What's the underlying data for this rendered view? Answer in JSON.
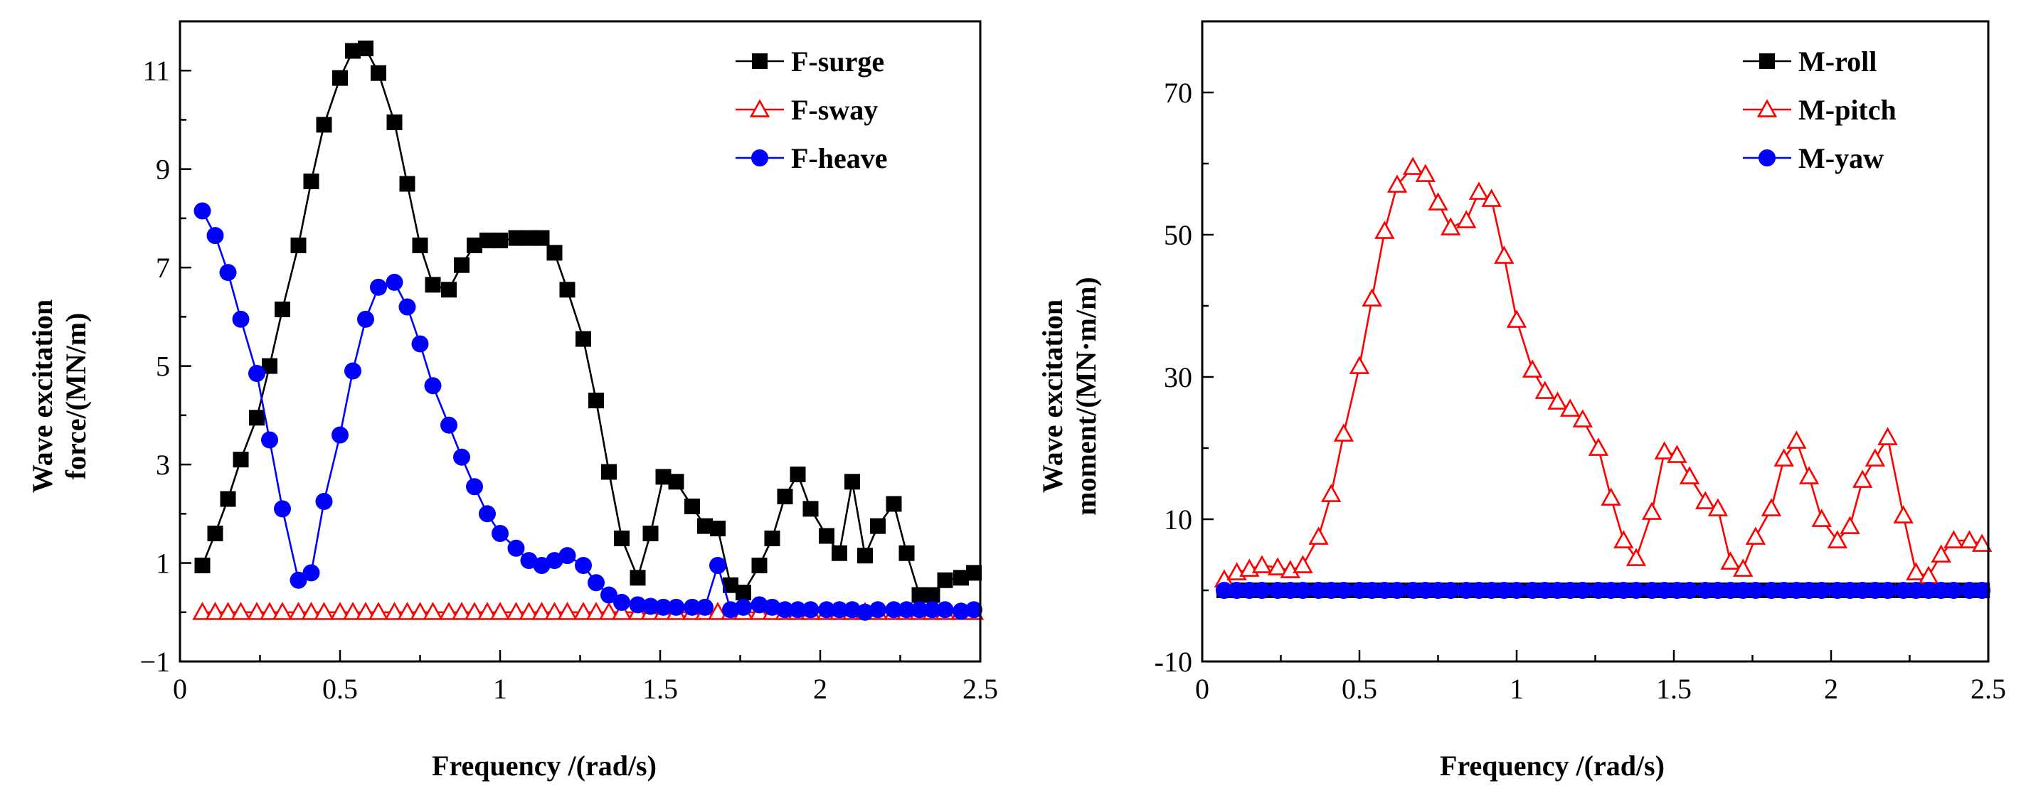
{
  "chart_data": [
    {
      "type": "line",
      "xlabel": "Frequency /(rad/s)",
      "ylabel_lines": [
        "Wave excitation",
        "force/(MN/m)"
      ],
      "xlim": [
        0,
        2.5
      ],
      "ylim": [
        -1,
        12
      ],
      "xticks": [
        0,
        0.5,
        1,
        1.5,
        2,
        2.5
      ],
      "xtick_labels": [
        "0",
        "0.5",
        "1",
        "1.5",
        "2",
        "2.5"
      ],
      "yticks": [
        -1,
        1,
        3,
        5,
        7,
        9,
        11
      ],
      "ytick_labels": [
        "−1",
        "1",
        "3",
        "5",
        "7",
        "9",
        "11"
      ],
      "legend_position": "top-right",
      "series": [
        {
          "name": "F-surge",
          "color": "#000000",
          "marker": "square",
          "x": [
            0.07,
            0.11,
            0.15,
            0.19,
            0.24,
            0.28,
            0.32,
            0.37,
            0.41,
            0.45,
            0.5,
            0.54,
            0.58,
            0.62,
            0.67,
            0.71,
            0.75,
            0.79,
            0.84,
            0.88,
            0.92,
            0.96,
            1.0,
            1.05,
            1.09,
            1.13,
            1.17,
            1.21,
            1.26,
            1.3,
            1.34,
            1.38,
            1.43,
            1.47,
            1.51,
            1.55,
            1.6,
            1.64,
            1.68,
            1.72,
            1.76,
            1.81,
            1.85,
            1.89,
            1.93,
            1.97,
            2.02,
            2.06,
            2.1,
            2.14,
            2.18,
            2.23,
            2.27,
            2.31,
            2.35,
            2.39,
            2.44,
            2.48
          ],
          "values": [
            0.95,
            1.6,
            2.3,
            3.1,
            3.95,
            5.0,
            6.15,
            7.45,
            8.75,
            9.9,
            10.85,
            11.4,
            11.45,
            10.95,
            9.95,
            8.7,
            7.45,
            6.65,
            6.55,
            7.05,
            7.45,
            7.55,
            7.55,
            7.6,
            7.6,
            7.6,
            7.3,
            6.55,
            5.55,
            4.3,
            2.85,
            1.5,
            0.7,
            1.6,
            2.75,
            2.65,
            2.15,
            1.75,
            1.7,
            0.55,
            0.4,
            0.95,
            1.5,
            2.35,
            2.8,
            2.1,
            1.55,
            1.2,
            2.65,
            1.15,
            1.75,
            2.2,
            1.2,
            0.35,
            0.35,
            0.65,
            0.7,
            0.8
          ]
        },
        {
          "name": "F-sway",
          "color": "#ff0000",
          "marker": "triangle",
          "x": [
            0.07,
            0.11,
            0.15,
            0.19,
            0.24,
            0.28,
            0.32,
            0.37,
            0.41,
            0.45,
            0.5,
            0.54,
            0.58,
            0.62,
            0.67,
            0.71,
            0.75,
            0.79,
            0.84,
            0.88,
            0.92,
            0.96,
            1.0,
            1.05,
            1.09,
            1.13,
            1.17,
            1.21,
            1.26,
            1.3,
            1.34,
            1.38,
            1.43,
            1.47,
            1.51,
            1.55,
            1.6,
            1.64,
            1.68,
            1.72,
            1.76,
            1.81,
            1.85,
            1.89,
            1.93,
            1.97,
            2.02,
            2.06,
            2.1,
            2.14,
            2.18,
            2.23,
            2.27,
            2.31,
            2.35,
            2.39,
            2.44,
            2.48
          ],
          "values": [
            0,
            0,
            0,
            0,
            0,
            0,
            0,
            0,
            0,
            0,
            0,
            0,
            0,
            0,
            0,
            0,
            0,
            0,
            0,
            0,
            0,
            0,
            0,
            0,
            0,
            0,
            0,
            0,
            0,
            0,
            0,
            0,
            0,
            0,
            0,
            0,
            0,
            0,
            0,
            0,
            0,
            0,
            0,
            0,
            0,
            0,
            0,
            0,
            0,
            0,
            0,
            0,
            0,
            0,
            0,
            0,
            0,
            0
          ]
        },
        {
          "name": "F-heave",
          "color": "#0000ff",
          "marker": "circle",
          "x": [
            0.07,
            0.11,
            0.15,
            0.19,
            0.24,
            0.28,
            0.32,
            0.37,
            0.41,
            0.45,
            0.5,
            0.54,
            0.58,
            0.62,
            0.67,
            0.71,
            0.75,
            0.79,
            0.84,
            0.88,
            0.92,
            0.96,
            1.0,
            1.05,
            1.09,
            1.13,
            1.17,
            1.21,
            1.26,
            1.3,
            1.34,
            1.38,
            1.43,
            1.47,
            1.51,
            1.55,
            1.6,
            1.64,
            1.68,
            1.72,
            1.76,
            1.81,
            1.85,
            1.89,
            1.93,
            1.97,
            2.02,
            2.06,
            2.1,
            2.14,
            2.18,
            2.23,
            2.27,
            2.31,
            2.35,
            2.39,
            2.44,
            2.48
          ],
          "values": [
            8.15,
            7.65,
            6.9,
            5.95,
            4.85,
            3.5,
            2.1,
            0.65,
            0.8,
            2.25,
            3.6,
            4.9,
            5.95,
            6.6,
            6.7,
            6.2,
            5.45,
            4.6,
            3.8,
            3.15,
            2.55,
            2.0,
            1.6,
            1.3,
            1.05,
            0.95,
            1.05,
            1.15,
            0.95,
            0.6,
            0.35,
            0.2,
            0.15,
            0.12,
            0.1,
            0.1,
            0.1,
            0.1,
            0.95,
            0.05,
            0.1,
            0.15,
            0.1,
            0.05,
            0.05,
            0.05,
            0.05,
            0.05,
            0.05,
            0.0,
            0.05,
            0.05,
            0.05,
            0.05,
            0.05,
            0.05,
            0.02,
            0.05
          ]
        }
      ]
    },
    {
      "type": "line",
      "xlabel": "Frequency /(rad/s)",
      "ylabel_lines": [
        "Wave excitation",
        "moment/(MN·m/m)"
      ],
      "xlim": [
        0,
        2.5
      ],
      "ylim": [
        -10,
        80
      ],
      "xticks": [
        0,
        0.5,
        1,
        1.5,
        2,
        2.5
      ],
      "xtick_labels": [
        "0",
        "0.5",
        "1",
        "1.5",
        "2",
        "2.5"
      ],
      "yticks": [
        -10,
        10,
        30,
        50,
        70
      ],
      "ytick_labels": [
        "-10",
        "10",
        "30",
        "50",
        "70"
      ],
      "legend_position": "top-right",
      "series": [
        {
          "name": "M-roll",
          "color": "#000000",
          "marker": "square",
          "x": [
            0.07,
            0.11,
            0.15,
            0.19,
            0.24,
            0.28,
            0.32,
            0.37,
            0.41,
            0.45,
            0.5,
            0.54,
            0.58,
            0.62,
            0.67,
            0.71,
            0.75,
            0.79,
            0.84,
            0.88,
            0.92,
            0.96,
            1.0,
            1.05,
            1.09,
            1.13,
            1.17,
            1.21,
            1.26,
            1.3,
            1.34,
            1.38,
            1.43,
            1.47,
            1.51,
            1.55,
            1.6,
            1.64,
            1.68,
            1.72,
            1.76,
            1.81,
            1.85,
            1.89,
            1.93,
            1.97,
            2.02,
            2.06,
            2.1,
            2.14,
            2.18,
            2.23,
            2.27,
            2.31,
            2.35,
            2.39,
            2.44,
            2.48
          ],
          "values": [
            0,
            0,
            0,
            0,
            0,
            0,
            0,
            0,
            0,
            0,
            0,
            0,
            0,
            0,
            0,
            0,
            0,
            0,
            0,
            0,
            0,
            0,
            0,
            0,
            0,
            0,
            0,
            0,
            0,
            0,
            0,
            0,
            0,
            0,
            0,
            0,
            0,
            0,
            0,
            0,
            0,
            0,
            0,
            0,
            0,
            0,
            0,
            0,
            0,
            0,
            0,
            0,
            0,
            0,
            0,
            0,
            0,
            0
          ]
        },
        {
          "name": "M-pitch",
          "color": "#ff0000",
          "marker": "triangle",
          "x": [
            0.07,
            0.11,
            0.15,
            0.19,
            0.24,
            0.28,
            0.32,
            0.37,
            0.41,
            0.45,
            0.5,
            0.54,
            0.58,
            0.62,
            0.67,
            0.71,
            0.75,
            0.79,
            0.84,
            0.88,
            0.92,
            0.96,
            1.0,
            1.05,
            1.09,
            1.13,
            1.17,
            1.21,
            1.26,
            1.3,
            1.34,
            1.38,
            1.43,
            1.47,
            1.51,
            1.55,
            1.6,
            1.64,
            1.68,
            1.72,
            1.76,
            1.81,
            1.85,
            1.89,
            1.93,
            1.97,
            2.02,
            2.06,
            2.1,
            2.14,
            2.18,
            2.23,
            2.27,
            2.31,
            2.35,
            2.39,
            2.44,
            2.48
          ],
          "values": [
            1.5,
            2.5,
            3.0,
            3.5,
            3.2,
            2.8,
            3.5,
            7.5,
            13.5,
            22.0,
            31.5,
            41.0,
            50.5,
            57.0,
            59.5,
            58.5,
            54.5,
            51.0,
            52.0,
            56.0,
            55.0,
            47.0,
            38.0,
            31.0,
            28.0,
            26.5,
            25.5,
            24.0,
            20.0,
            13.0,
            7.0,
            4.5,
            11.0,
            19.5,
            19.0,
            16.0,
            12.5,
            11.5,
            4.0,
            3.0,
            7.5,
            11.5,
            18.5,
            21.0,
            16.0,
            10.0,
            7.0,
            9.0,
            15.5,
            18.5,
            21.5,
            10.5,
            2.5,
            2.0,
            5.0,
            7.0,
            7.0,
            6.5
          ]
        },
        {
          "name": "M-yaw",
          "color": "#0000ff",
          "marker": "circle",
          "x": [
            0.07,
            0.11,
            0.15,
            0.19,
            0.24,
            0.28,
            0.32,
            0.37,
            0.41,
            0.45,
            0.5,
            0.54,
            0.58,
            0.62,
            0.67,
            0.71,
            0.75,
            0.79,
            0.84,
            0.88,
            0.92,
            0.96,
            1.0,
            1.05,
            1.09,
            1.13,
            1.17,
            1.21,
            1.26,
            1.3,
            1.34,
            1.38,
            1.43,
            1.47,
            1.51,
            1.55,
            1.6,
            1.64,
            1.68,
            1.72,
            1.76,
            1.81,
            1.85,
            1.89,
            1.93,
            1.97,
            2.02,
            2.06,
            2.1,
            2.14,
            2.18,
            2.23,
            2.27,
            2.31,
            2.35,
            2.39,
            2.44,
            2.48
          ],
          "values": [
            0,
            0,
            0,
            0,
            0,
            0,
            0,
            0,
            0,
            0,
            0,
            0,
            0,
            0,
            0,
            0,
            0,
            0,
            0,
            0,
            0,
            0,
            0,
            0,
            0,
            0,
            0,
            0,
            0,
            0,
            0,
            0,
            0,
            0,
            0,
            0,
            0,
            0,
            0,
            0,
            0,
            0,
            0,
            0,
            0,
            0,
            0,
            0,
            0,
            0,
            0,
            0,
            0,
            0,
            0,
            0,
            0,
            0
          ]
        }
      ]
    }
  ]
}
